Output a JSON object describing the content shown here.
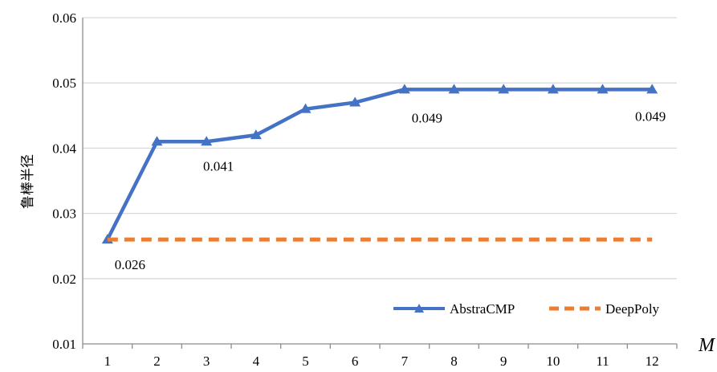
{
  "chart_data": {
    "type": "line",
    "title": "",
    "xlabel": "M",
    "ylabel": "鲁棒半径",
    "categories": [
      "1",
      "2",
      "3",
      "4",
      "5",
      "6",
      "7",
      "8",
      "9",
      "10",
      "11",
      "12"
    ],
    "ylim": [
      0.01,
      0.06
    ],
    "yticks": [
      "0.01",
      "0.02",
      "0.03",
      "0.04",
      "0.05",
      "0.06"
    ],
    "grid": true,
    "legend_position": "bottom-right",
    "series": [
      {
        "name": "AbstraCMP",
        "values": [
          0.026,
          0.041,
          0.041,
          0.042,
          0.046,
          0.047,
          0.049,
          0.049,
          0.049,
          0.049,
          0.049,
          0.049
        ],
        "color": "#4472C4",
        "style": "solid",
        "marker": "triangle"
      },
      {
        "name": "DeepPoly",
        "values": [
          0.026,
          0.026,
          0.026,
          0.026,
          0.026,
          0.026,
          0.026,
          0.026,
          0.026,
          0.026,
          0.026,
          0.026
        ],
        "color": "#ED7D31",
        "style": "dashed",
        "marker": "none"
      }
    ],
    "annotations": [
      {
        "text": "0.026",
        "category": "1",
        "value": 0.026
      },
      {
        "text": "0.041",
        "category": "3",
        "value": 0.041
      },
      {
        "text": "0.049",
        "category": "7",
        "value": 0.049
      },
      {
        "text": "0.049",
        "category": "12",
        "value": 0.049
      }
    ]
  }
}
